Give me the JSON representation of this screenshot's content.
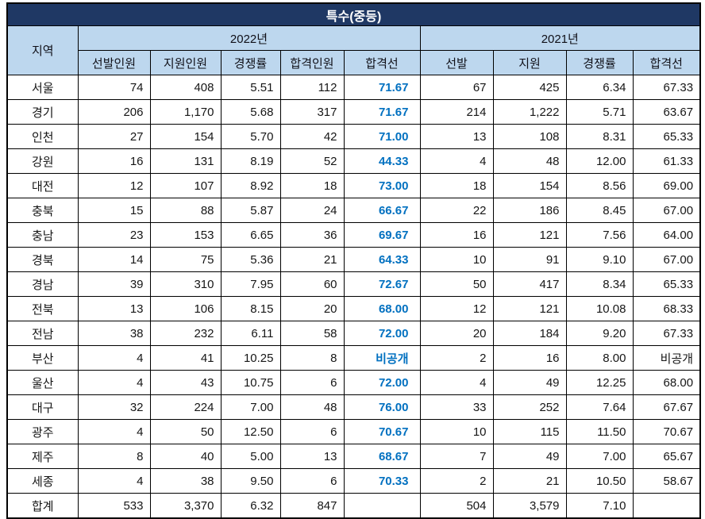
{
  "title": "특수(중등)",
  "colors": {
    "title_bg": "#1F3864",
    "title_text": "#FFFFFF",
    "header_bg": "#BDD7EE",
    "cutoff_2022_text": "#0070C0",
    "body_text": "#161616",
    "grid_border": "#000000"
  },
  "table": {
    "region_header": "지역",
    "year_2022": "2022년",
    "year_2021": "2021년",
    "headers_2022": [
      "선발인원",
      "지원인원",
      "경쟁률",
      "합격인원",
      "합격선"
    ],
    "headers_2021": [
      "선발",
      "지원",
      "경쟁률",
      "합격선"
    ],
    "rows": [
      [
        "서울",
        "74",
        "408",
        "5.51",
        "112",
        "71.67",
        "67",
        "425",
        "6.34",
        "67.33"
      ],
      [
        "경기",
        "206",
        "1,170",
        "5.68",
        "317",
        "71.67",
        "214",
        "1,222",
        "5.71",
        "63.67"
      ],
      [
        "인천",
        "27",
        "154",
        "5.70",
        "42",
        "71.00",
        "13",
        "108",
        "8.31",
        "65.33"
      ],
      [
        "강원",
        "16",
        "131",
        "8.19",
        "52",
        "44.33",
        "4",
        "48",
        "12.00",
        "61.33"
      ],
      [
        "대전",
        "12",
        "107",
        "8.92",
        "18",
        "73.00",
        "18",
        "154",
        "8.56",
        "69.00"
      ],
      [
        "충북",
        "15",
        "88",
        "5.87",
        "24",
        "66.67",
        "22",
        "186",
        "8.45",
        "67.00"
      ],
      [
        "충남",
        "23",
        "153",
        "6.65",
        "36",
        "69.67",
        "16",
        "121",
        "7.56",
        "64.00"
      ],
      [
        "경북",
        "14",
        "75",
        "5.36",
        "21",
        "64.33",
        "10",
        "91",
        "9.10",
        "67.00"
      ],
      [
        "경남",
        "39",
        "310",
        "7.95",
        "60",
        "72.67",
        "50",
        "417",
        "8.34",
        "65.33"
      ],
      [
        "전북",
        "13",
        "106",
        "8.15",
        "20",
        "68.00",
        "12",
        "121",
        "10.08",
        "68.33"
      ],
      [
        "전남",
        "38",
        "232",
        "6.11",
        "58",
        "72.00",
        "20",
        "184",
        "9.20",
        "67.33"
      ],
      [
        "부산",
        "4",
        "41",
        "10.25",
        "8",
        "비공개",
        "2",
        "16",
        "8.00",
        "비공개"
      ],
      [
        "울산",
        "4",
        "43",
        "10.75",
        "6",
        "72.00",
        "4",
        "49",
        "12.25",
        "68.00"
      ],
      [
        "대구",
        "32",
        "224",
        "7.00",
        "48",
        "76.00",
        "33",
        "252",
        "7.64",
        "67.67"
      ],
      [
        "광주",
        "4",
        "50",
        "12.50",
        "6",
        "70.67",
        "10",
        "115",
        "11.50",
        "70.67"
      ],
      [
        "제주",
        "8",
        "40",
        "5.00",
        "13",
        "68.67",
        "7",
        "49",
        "7.00",
        "65.67"
      ],
      [
        "세종",
        "4",
        "38",
        "9.50",
        "6",
        "70.33",
        "2",
        "21",
        "10.50",
        "58.67"
      ],
      [
        "합계",
        "533",
        "3,370",
        "6.32",
        "847",
        "",
        "504",
        "3,579",
        "7.10",
        ""
      ]
    ]
  }
}
